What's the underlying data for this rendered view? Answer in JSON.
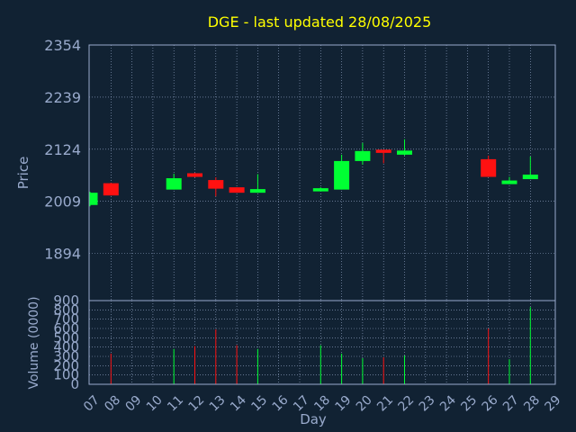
{
  "chart_data": {
    "type": "candlestick",
    "title": "DGE - last updated 28/08/2025",
    "xlabel": "Day",
    "ylabel": "Price",
    "volume_label": "Volume (0000)",
    "x_ticks": [
      "07",
      "08",
      "09",
      "10",
      "11",
      "12",
      "13",
      "14",
      "15",
      "16",
      "17",
      "18",
      "19",
      "20",
      "21",
      "22",
      "23",
      "24",
      "25",
      "26",
      "27",
      "28",
      "29"
    ],
    "price_ticks": [
      1894,
      2009,
      2124,
      2239,
      2354
    ],
    "volume_ticks": [
      0,
      100,
      200,
      300,
      400,
      500,
      600,
      700,
      800,
      900
    ],
    "price_range": [
      1790,
      2354
    ],
    "volume_range": [
      0,
      900
    ],
    "grid": true,
    "colors": {
      "background": "#112233",
      "up": "#00ff33",
      "down": "#ff1111",
      "title": "#ffff00",
      "axis_text": "#99aacc",
      "frame": "#99aacc",
      "grid": "#99aacc"
    },
    "candles": [
      {
        "day": "07",
        "open": 2001,
        "high": 2030,
        "low": 1998,
        "close": 2028
      },
      {
        "day": "08",
        "open": 2049,
        "high": 2050,
        "low": 2022,
        "close": 2022
      },
      {
        "day": "11",
        "open": 2035,
        "high": 2070,
        "low": 2035,
        "close": 2060
      },
      {
        "day": "12",
        "open": 2071,
        "high": 2072,
        "low": 2062,
        "close": 2063
      },
      {
        "day": "13",
        "open": 2056,
        "high": 2062,
        "low": 2020,
        "close": 2037
      },
      {
        "day": "14",
        "open": 2040,
        "high": 2040,
        "low": 2028,
        "close": 2028
      },
      {
        "day": "15",
        "open": 2028,
        "high": 2069,
        "low": 2028,
        "close": 2036
      },
      {
        "day": "18",
        "open": 2031,
        "high": 2040,
        "low": 2031,
        "close": 2038
      },
      {
        "day": "19",
        "open": 2035,
        "high": 2112,
        "low": 2035,
        "close": 2098
      },
      {
        "day": "20",
        "open": 2098,
        "high": 2138,
        "low": 2090,
        "close": 2120
      },
      {
        "day": "21",
        "open": 2123,
        "high": 2123,
        "low": 2093,
        "close": 2116
      },
      {
        "day": "22",
        "open": 2112,
        "high": 2146,
        "low": 2110,
        "close": 2121
      },
      {
        "day": "26",
        "open": 2102,
        "high": 2110,
        "low": 2063,
        "close": 2063
      },
      {
        "day": "27",
        "open": 2047,
        "high": 2063,
        "low": 2047,
        "close": 2055
      },
      {
        "day": "28",
        "open": 2058,
        "high": 2108,
        "low": 2058,
        "close": 2068
      }
    ],
    "volume": [
      {
        "day": "08",
        "value": 330,
        "direction": "down"
      },
      {
        "day": "11",
        "value": 380,
        "direction": "up"
      },
      {
        "day": "12",
        "value": 410,
        "direction": "down"
      },
      {
        "day": "13",
        "value": 590,
        "direction": "down"
      },
      {
        "day": "14",
        "value": 420,
        "direction": "down"
      },
      {
        "day": "15",
        "value": 380,
        "direction": "up"
      },
      {
        "day": "18",
        "value": 420,
        "direction": "up"
      },
      {
        "day": "19",
        "value": 330,
        "direction": "up"
      },
      {
        "day": "20",
        "value": 280,
        "direction": "up"
      },
      {
        "day": "21",
        "value": 290,
        "direction": "down"
      },
      {
        "day": "22",
        "value": 310,
        "direction": "up"
      },
      {
        "day": "26",
        "value": 600,
        "direction": "down"
      },
      {
        "day": "27",
        "value": 270,
        "direction": "up"
      },
      {
        "day": "28",
        "value": 830,
        "direction": "up"
      }
    ]
  }
}
